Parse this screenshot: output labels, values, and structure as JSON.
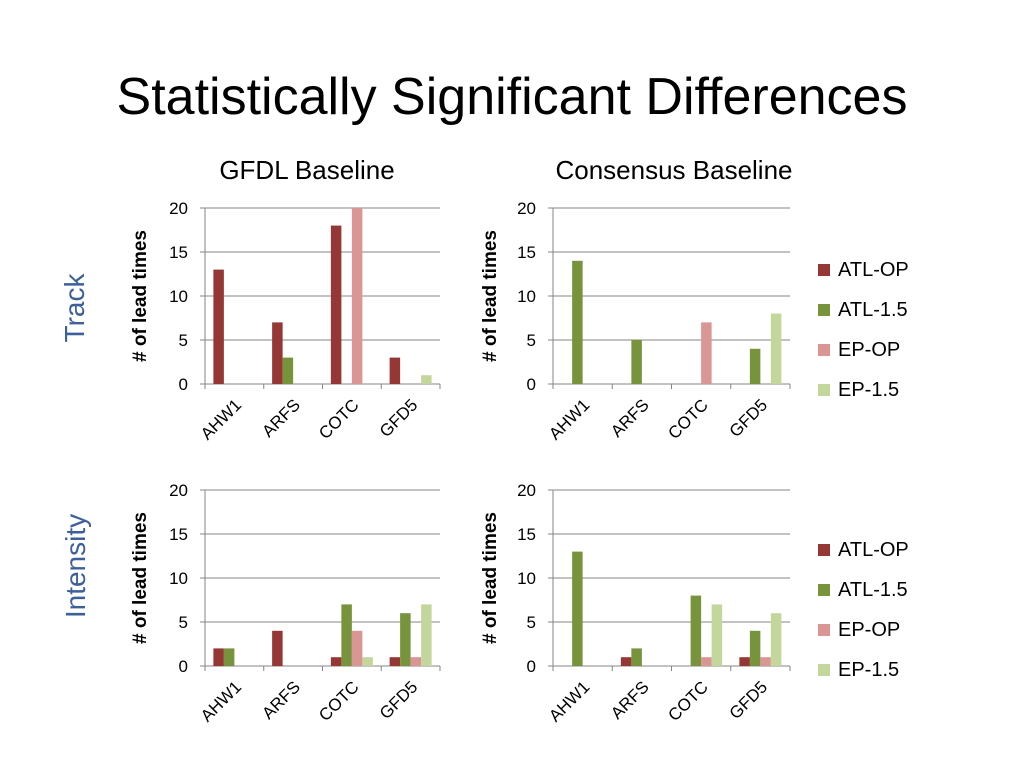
{
  "title": "Statistically Significant Differences",
  "column_titles": [
    "GFDL Baseline",
    "Consensus Baseline"
  ],
  "row_labels": [
    "Track",
    "Intensity"
  ],
  "colors": {
    "ATL-OP": "#953735",
    "ATL-1.5": "#77933c",
    "EP-OP": "#d99694",
    "EP-1.5": "#c3d69b",
    "row_label": "#3d5f9a",
    "gridline": "#868686"
  },
  "legend_top": {
    "items": [
      "ATL-OP",
      "ATL-1.5",
      "EP-OP",
      "EP-1.5"
    ]
  },
  "legend_bottom": {
    "items": [
      "ATL-OP",
      "ATL-1.5",
      "EP-OP",
      "EP-1.5"
    ]
  },
  "chart_data": [
    {
      "type": "bar",
      "title": "GFDL Baseline",
      "row": "Track",
      "categories": [
        "AHW1",
        "ARFS",
        "COTC",
        "GFD5"
      ],
      "series": [
        {
          "name": "ATL-OP",
          "values": [
            13,
            7,
            18,
            3
          ]
        },
        {
          "name": "ATL-1.5",
          "values": [
            0,
            3,
            0,
            0
          ]
        },
        {
          "name": "EP-OP",
          "values": [
            0,
            0,
            20,
            0
          ]
        },
        {
          "name": "EP-1.5",
          "values": [
            0,
            0,
            0,
            1
          ]
        }
      ],
      "ylabel": "# of lead times",
      "ylim": [
        0,
        20
      ],
      "yticks": [
        "0",
        "5",
        "10",
        "15",
        "20"
      ],
      "grid": true
    },
    {
      "type": "bar",
      "title": "Consensus Baseline",
      "row": "Track",
      "categories": [
        "AHW1",
        "ARFS",
        "COTC",
        "GFD5"
      ],
      "series": [
        {
          "name": "ATL-OP",
          "values": [
            0,
            0,
            0,
            0
          ]
        },
        {
          "name": "ATL-1.5",
          "values": [
            14,
            5,
            0,
            4
          ]
        },
        {
          "name": "EP-OP",
          "values": [
            0,
            0,
            7,
            0
          ]
        },
        {
          "name": "EP-1.5",
          "values": [
            0,
            0,
            0,
            8
          ]
        }
      ],
      "ylabel": "# of lead times",
      "ylim": [
        0,
        20
      ],
      "yticks": [
        "0",
        "5",
        "10",
        "15",
        "20"
      ],
      "grid": true
    },
    {
      "type": "bar",
      "title": "GFDL Baseline",
      "row": "Intensity",
      "categories": [
        "AHW1",
        "ARFS",
        "COTC",
        "GFD5"
      ],
      "series": [
        {
          "name": "ATL-OP",
          "values": [
            2,
            4,
            1,
            1
          ]
        },
        {
          "name": "ATL-1.5",
          "values": [
            2,
            0,
            7,
            6
          ]
        },
        {
          "name": "EP-OP",
          "values": [
            0,
            0,
            4,
            1
          ]
        },
        {
          "name": "EP-1.5",
          "values": [
            0,
            0,
            1,
            7
          ]
        }
      ],
      "ylabel": "# of lead times",
      "ylim": [
        0,
        20
      ],
      "yticks": [
        "0",
        "5",
        "10",
        "15",
        "20"
      ],
      "grid": true
    },
    {
      "type": "bar",
      "title": "Consensus Baseline",
      "row": "Intensity",
      "categories": [
        "AHW1",
        "ARFS",
        "COTC",
        "GFD5"
      ],
      "series": [
        {
          "name": "ATL-OP",
          "values": [
            0,
            1,
            0,
            1
          ]
        },
        {
          "name": "ATL-1.5",
          "values": [
            13,
            2,
            8,
            4
          ]
        },
        {
          "name": "EP-OP",
          "values": [
            0,
            0,
            1,
            1
          ]
        },
        {
          "name": "EP-1.5",
          "values": [
            0,
            0,
            7,
            6
          ]
        }
      ],
      "ylabel": "# of lead times",
      "ylim": [
        0,
        20
      ],
      "yticks": [
        "0",
        "5",
        "10",
        "15",
        "20"
      ],
      "grid": true
    }
  ]
}
